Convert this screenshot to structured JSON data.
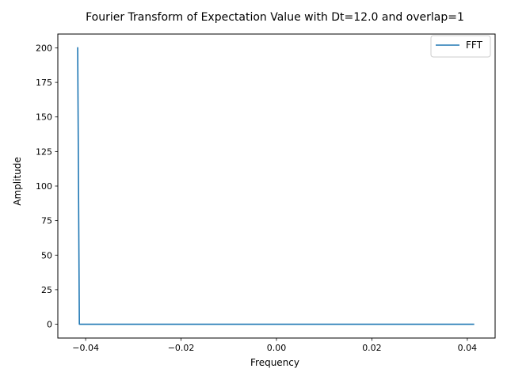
{
  "chart_data": {
    "type": "line",
    "title": "Fourier Transform of Expectation Value with Dt=12.0 and overlap=1",
    "xlabel": "Frequency",
    "ylabel": "Amplitude",
    "xlim": [
      -0.04583,
      0.04583
    ],
    "ylim": [
      -10,
      210
    ],
    "xticks": [
      -0.04,
      -0.02,
      0.0,
      0.02,
      0.04
    ],
    "xtick_labels": [
      "−0.04",
      "−0.02",
      "0.00",
      "0.02",
      "0.04"
    ],
    "yticks": [
      0,
      25,
      50,
      75,
      100,
      125,
      150,
      175,
      200
    ],
    "ytick_labels": [
      "0",
      "25",
      "50",
      "75",
      "100",
      "125",
      "150",
      "175",
      "200"
    ],
    "grid": false,
    "legend_position": "upper right",
    "series": [
      {
        "name": "FFT",
        "color": "#1f77b4",
        "x": [
          -0.041667,
          -0.041319,
          0.041319
        ],
        "y": [
          200,
          0,
          0
        ]
      }
    ]
  }
}
